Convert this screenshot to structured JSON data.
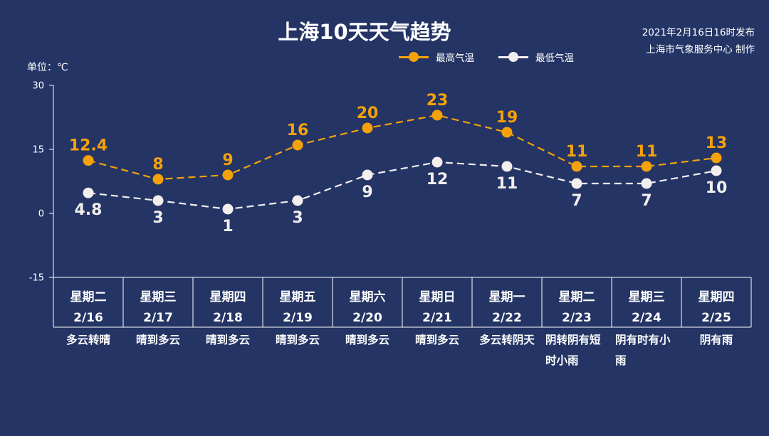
{
  "header": {
    "title": "上海10天天气趋势",
    "publish_line1": "2021年2月16日16时发布",
    "publish_line2": "上海市气象服务中心 制作",
    "unit_label": "单位：℃"
  },
  "colors": {
    "background": "#243465",
    "high": "#f5a20a",
    "low": "#f3efee",
    "axis": "#ffffff"
  },
  "legend": {
    "high_label": "最高气温",
    "low_label": "最低气温"
  },
  "chart_data": {
    "type": "line",
    "title": "上海10天天气趋势",
    "ylabel": "单位：℃",
    "ylim": [
      -15,
      30
    ],
    "yticks": [
      30,
      15,
      0,
      -15
    ],
    "categories": [
      "2/16",
      "2/17",
      "2/18",
      "2/19",
      "2/20",
      "2/21",
      "2/22",
      "2/23",
      "2/24",
      "2/25"
    ],
    "series": [
      {
        "name": "最高气温",
        "color": "#f5a20a",
        "values": [
          12.4,
          8,
          9,
          16,
          20,
          23,
          19,
          11,
          11,
          13
        ],
        "labels": [
          "12.4",
          "8",
          "9",
          "16",
          "20",
          "23",
          "19",
          "11",
          "11",
          "13"
        ]
      },
      {
        "name": "最低气温",
        "color": "#f3efee",
        "values": [
          4.8,
          3,
          1,
          3,
          9,
          12,
          11,
          7,
          7,
          10
        ],
        "labels": [
          "4.8",
          "3",
          "1",
          "3",
          "9",
          "12",
          "11",
          "7",
          "7",
          "10"
        ]
      }
    ],
    "line_style": "dashed",
    "legend_position": "top-right",
    "grid": false
  },
  "days": [
    {
      "weekday": "星期二",
      "date": "2/16",
      "weather": [
        "多云转晴"
      ]
    },
    {
      "weekday": "星期三",
      "date": "2/17",
      "weather": [
        "晴到多云"
      ]
    },
    {
      "weekday": "星期四",
      "date": "2/18",
      "weather": [
        "晴到多云"
      ]
    },
    {
      "weekday": "星期五",
      "date": "2/19",
      "weather": [
        "晴到多云"
      ]
    },
    {
      "weekday": "星期六",
      "date": "2/20",
      "weather": [
        "晴到多云"
      ]
    },
    {
      "weekday": "星期日",
      "date": "2/21",
      "weather": [
        "晴到多云"
      ]
    },
    {
      "weekday": "星期一",
      "date": "2/22",
      "weather": [
        "多云转阴天"
      ]
    },
    {
      "weekday": "星期二",
      "date": "2/23",
      "weather": [
        "阴转阴有短",
        "时小雨"
      ]
    },
    {
      "weekday": "星期三",
      "date": "2/24",
      "weather": [
        "阴有时有小",
        "雨"
      ]
    },
    {
      "weekday": "星期四",
      "date": "2/25",
      "weather": [
        "阴有雨"
      ]
    }
  ]
}
